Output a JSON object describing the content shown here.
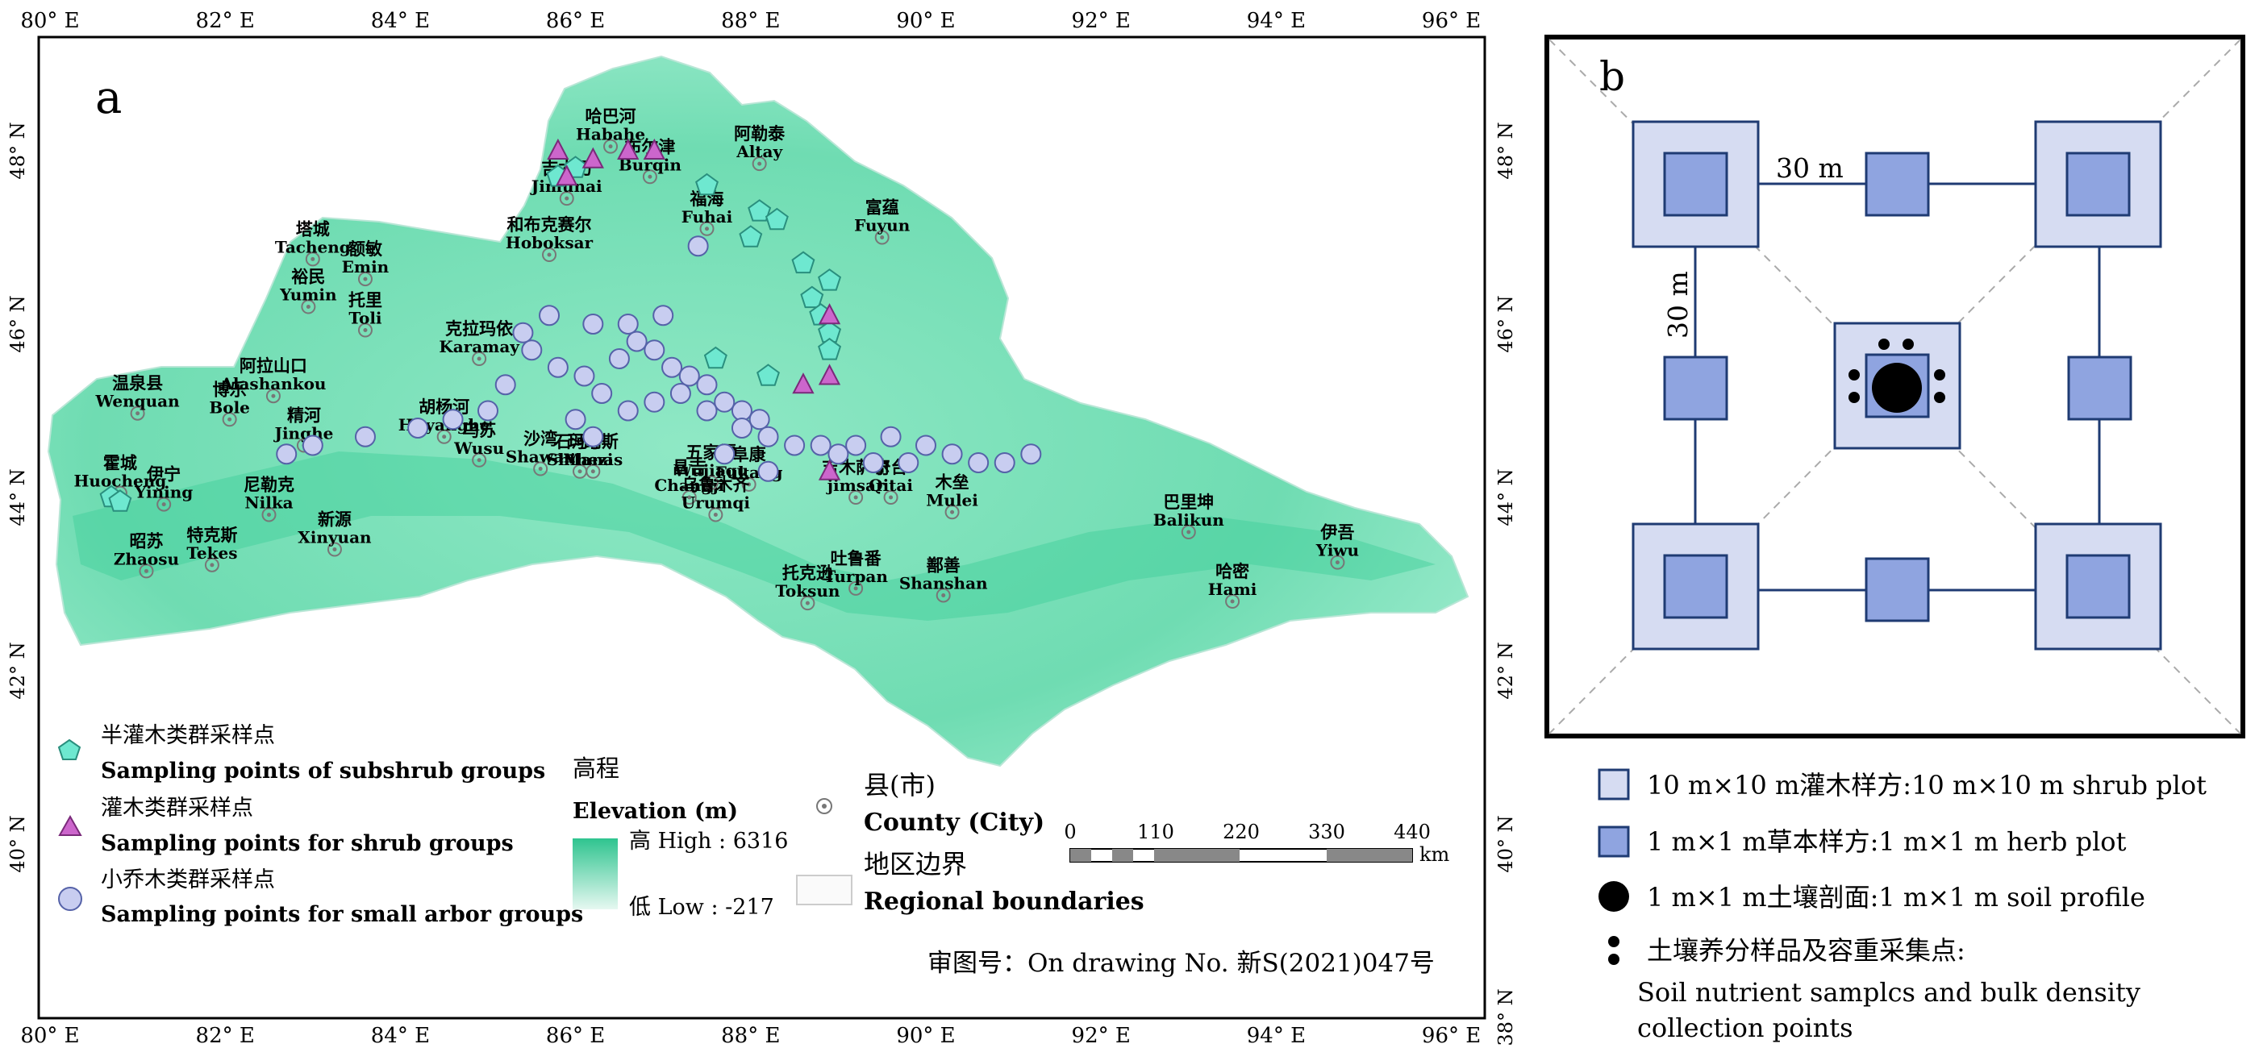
{
  "panel_a": {
    "label": "a",
    "lon_ticks": [
      "80° E",
      "82° E",
      "84° E",
      "86° E",
      "88° E",
      "90° E",
      "92° E",
      "94° E",
      "96° E"
    ],
    "lat_ticks": [
      "48° N",
      "46° N",
      "44° N",
      "42° N",
      "40° N",
      "38° N"
    ],
    "places": [
      {
        "cn": "哈巴河",
        "en": "Habahe",
        "lon": 86.4,
        "lat": 48.05
      },
      {
        "cn": "阿勒泰",
        "en": "Altay",
        "lon": 88.1,
        "lat": 47.85
      },
      {
        "cn": "吉木乃",
        "en": "Jimunai",
        "lon": 85.9,
        "lat": 47.45
      },
      {
        "cn": "布尔津",
        "en": "Burqin",
        "lon": 86.85,
        "lat": 47.7
      },
      {
        "cn": "福海",
        "en": "Fuhai",
        "lon": 87.5,
        "lat": 47.1
      },
      {
        "cn": "和布克赛尔",
        "en": "Hoboksar",
        "lon": 85.7,
        "lat": 46.8
      },
      {
        "cn": "富蕴",
        "en": "Fuyun",
        "lon": 89.5,
        "lat": 47.0
      },
      {
        "cn": "塔城",
        "en": "Tacheng",
        "lon": 83.0,
        "lat": 46.75
      },
      {
        "cn": "额敏",
        "en": "Emin",
        "lon": 83.6,
        "lat": 46.52
      },
      {
        "cn": "裕民",
        "en": "Yumin",
        "lon": 82.95,
        "lat": 46.2
      },
      {
        "cn": "托里",
        "en": "Toli",
        "lon": 83.6,
        "lat": 45.93
      },
      {
        "cn": "克拉玛依",
        "en": "Karamay",
        "lon": 84.9,
        "lat": 45.6
      },
      {
        "cn": "阿拉山口",
        "en": "Alashankou",
        "lon": 82.55,
        "lat": 45.17
      },
      {
        "cn": "温泉县",
        "en": "Wenquan",
        "lon": 81.0,
        "lat": 44.97
      },
      {
        "cn": "博乐",
        "en": "Bole",
        "lon": 82.05,
        "lat": 44.9
      },
      {
        "cn": "精河",
        "en": "Jinghe",
        "lon": 82.9,
        "lat": 44.6
      },
      {
        "cn": "胡杨河",
        "en": "Huyanghe",
        "lon": 84.5,
        "lat": 44.7
      },
      {
        "cn": "乌苏",
        "en": "Wusu",
        "lon": 84.9,
        "lat": 44.43
      },
      {
        "cn": "沙湾",
        "en": "Shawan",
        "lon": 85.6,
        "lat": 44.33
      },
      {
        "cn": "霍城",
        "en": "Huocheng",
        "lon": 80.8,
        "lat": 44.05
      },
      {
        "cn": "伊宁",
        "en": "Yining",
        "lon": 81.3,
        "lat": 43.92
      },
      {
        "cn": "尼勒克",
        "en": "Nilka",
        "lon": 82.5,
        "lat": 43.8
      },
      {
        "cn": "石河子",
        "en": "Shihezi",
        "lon": 86.05,
        "lat": 44.3
      },
      {
        "cn": "玛纳斯",
        "en": "Manas",
        "lon": 86.2,
        "lat": 44.3
      },
      {
        "cn": "昌吉",
        "en": "Changji",
        "lon": 87.3,
        "lat": 44.0
      },
      {
        "cn": "阜康",
        "en": "Fukang",
        "lon": 87.98,
        "lat": 44.15
      },
      {
        "cn": "奇台",
        "en": "Qitai",
        "lon": 89.6,
        "lat": 44.0
      },
      {
        "cn": "木垒",
        "en": "Mulei",
        "lon": 90.3,
        "lat": 43.83
      },
      {
        "cn": "吉木萨尔",
        "en": "jimsar",
        "lon": 89.2,
        "lat": 44.0
      },
      {
        "cn": "五家渠",
        "en": "Wujiaqu",
        "lon": 87.55,
        "lat": 44.17
      },
      {
        "cn": "新源",
        "en": "Xinyuan",
        "lon": 83.25,
        "lat": 43.4
      },
      {
        "cn": "昭苏",
        "en": "Zhaosu",
        "lon": 81.1,
        "lat": 43.15
      },
      {
        "cn": "特克斯",
        "en": "Tekes",
        "lon": 81.85,
        "lat": 43.22
      },
      {
        "cn": "乌鲁木齐",
        "en": "Urumqi",
        "lon": 87.6,
        "lat": 43.8
      },
      {
        "cn": "巴里坤",
        "en": "Balikun",
        "lon": 93.0,
        "lat": 43.6
      },
      {
        "cn": "伊吾",
        "en": "Yiwu",
        "lon": 94.7,
        "lat": 43.25
      },
      {
        "cn": "哈密",
        "en": "Hami",
        "lon": 93.5,
        "lat": 42.8
      },
      {
        "cn": "托克逊",
        "en": "Toksun",
        "lon": 88.65,
        "lat": 42.78
      },
      {
        "cn": "吐鲁番",
        "en": "Turpan",
        "lon": 89.2,
        "lat": 42.95
      },
      {
        "cn": "鄯善",
        "en": "Shanshan",
        "lon": 90.2,
        "lat": 42.87
      }
    ],
    "legend": {
      "subshrub_cn": "半灌木类群采样点",
      "subshrub_en": "Sampling points of subshrub groups",
      "shrub_cn": "灌木类群采样点",
      "shrub_en": "Sampling points for shrub groups",
      "arbor_cn": "小乔木类群采样点",
      "arbor_en": "Sampling points for small arbor groups",
      "elevation_cn": "高程",
      "elevation_en": "Elevation (m)",
      "high": "高 High : 6316",
      "low": "低 Low : -217",
      "county_cn": "县(市)",
      "county_en": "County (City)",
      "boundary_cn": "地区边界",
      "boundary_en": "Regional boundaries"
    },
    "scale": {
      "ticks": [
        "0",
        "110",
        "220",
        "330",
        "440"
      ],
      "unit": "km"
    },
    "review_no": "审图号：On drawing No. 新S(2021)047号",
    "colors": {
      "subshrub": "#6ee8d0",
      "shrub": "#cc66cc",
      "arbor": "#c8cdf0",
      "elev_high": "#2fc48f",
      "elev_low": "#e6f8f1"
    }
  },
  "panel_b": {
    "label": "b",
    "dim_horizontal": "30 m",
    "dim_vertical": "30 m",
    "legend": [
      {
        "symbol": "shrub-plot",
        "text": "10 m×10 m灌木样方:10 m×10 m shrub plot"
      },
      {
        "symbol": "herb-plot",
        "text": "1 m×1 m草本样方:1 m×1 m herb plot"
      },
      {
        "symbol": "soil-profile",
        "text": "1 m×1 m土壤剖面:1 m×1 m soil profile"
      }
    ],
    "nutrient_line1": "土壤养分样品及容重采集点:",
    "nutrient_line2": "Soil nutrient samplcs and bulk density",
    "nutrient_line3": "collection points",
    "colors": {
      "shrub_fill": "#d6dcf2",
      "herb_fill": "#8fa4e0",
      "edge": "#1f3b73"
    }
  }
}
